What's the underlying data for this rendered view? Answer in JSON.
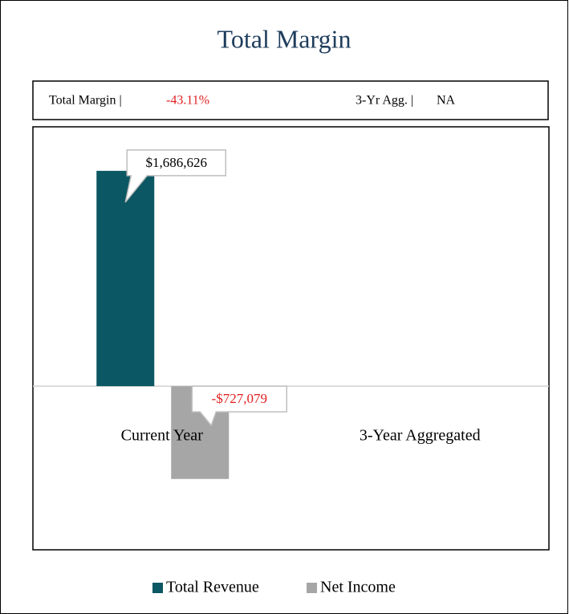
{
  "chart_data": {
    "type": "bar",
    "title": "Total Margin",
    "summary": {
      "label": "Total Margin |",
      "value": "-43.11%",
      "agg_label": "3-Yr Agg. |",
      "agg_value": "NA"
    },
    "categories": [
      "Current Year",
      "3-Year Aggregated"
    ],
    "series": [
      {
        "name": "Total Revenue",
        "color": "#0b5763",
        "values": [
          1686626,
          null
        ],
        "value_labels": [
          "$1,686,626",
          null
        ]
      },
      {
        "name": "Net Income",
        "color": "#a6a6a6",
        "values": [
          -727079,
          null
        ],
        "value_labels": [
          "-$727,079",
          null
        ]
      }
    ],
    "ylim": [
      -1200000,
      2000000
    ],
    "legend": "bottom"
  }
}
